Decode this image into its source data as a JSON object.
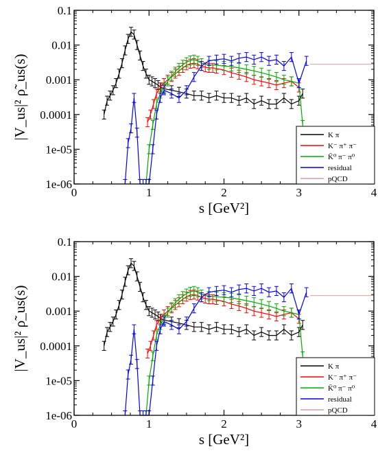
{
  "chart_data": [
    {
      "type": "line",
      "xlabel": "s [GeV²]",
      "ylabel": "|V_us|² ρ̃_us(s)",
      "xlim": [
        0,
        4
      ],
      "ylim": [
        1e-06,
        0.1
      ],
      "yscale": "log",
      "x_ticks": [
        "0",
        "1",
        "2",
        "3",
        "4"
      ],
      "y_ticks": [
        "1e-06",
        "1e-05",
        "0.0001",
        "0.001",
        "0.01",
        "0.1"
      ],
      "legend_position": "lower-right",
      "series": [
        {
          "name": "K π",
          "color": "#000000",
          "x": [
            0.4,
            0.44,
            0.48,
            0.52,
            0.56,
            0.6,
            0.64,
            0.68,
            0.72,
            0.76,
            0.8,
            0.84,
            0.88,
            0.92,
            0.96,
            1.0,
            1.04,
            1.08,
            1.12,
            1.16,
            1.2,
            1.3,
            1.4,
            1.5,
            1.6,
            1.7,
            1.8,
            1.9,
            2.0,
            2.1,
            2.2,
            2.3,
            2.4,
            2.5,
            2.6,
            2.7,
            2.8,
            2.9,
            3.0,
            3.05
          ],
          "y": [
            0.0001,
            0.00025,
            0.00035,
            0.0005,
            0.0008,
            0.0015,
            0.003,
            0.007,
            0.015,
            0.024,
            0.02,
            0.01,
            0.005,
            0.0025,
            0.0015,
            0.001,
            0.0009,
            0.0008,
            0.0007,
            0.0006,
            0.00055,
            0.0005,
            0.00045,
            0.0004,
            0.00035,
            0.00035,
            0.0003,
            0.00035,
            0.0003,
            0.0003,
            0.00025,
            0.0003,
            0.0002,
            0.00025,
            0.0002,
            0.0002,
            0.0003,
            0.0002,
            0.00025,
            0.0004
          ]
        },
        {
          "name": "K⁻ π⁺ π⁻",
          "color": "#ff0000",
          "x": [
            0.98,
            1.02,
            1.06,
            1.1,
            1.15,
            1.2,
            1.25,
            1.3,
            1.35,
            1.4,
            1.45,
            1.5,
            1.55,
            1.6,
            1.65,
            1.7,
            1.75,
            1.8,
            1.85,
            1.9,
            2.0,
            2.1,
            2.2,
            2.3,
            2.4,
            2.5,
            2.6,
            2.7,
            2.8,
            2.9,
            3.0
          ],
          "y": [
            6e-05,
            0.0001,
            0.0002,
            0.0004,
            0.0006,
            0.0008,
            0.001,
            0.0012,
            0.0015,
            0.0018,
            0.0022,
            0.0026,
            0.0029,
            0.003,
            0.0028,
            0.0025,
            0.0023,
            0.0022,
            0.0022,
            0.0021,
            0.0019,
            0.0016,
            0.0014,
            0.0012,
            0.001,
            0.0009,
            0.0008,
            0.0007,
            0.0008,
            0.0009,
            0.0006
          ]
        },
        {
          "name": "K̄⁰ π⁻ π⁰",
          "color": "#00aa00",
          "x": [
            0.96,
            1.0,
            1.05,
            1.1,
            1.15,
            1.2,
            1.25,
            1.3,
            1.35,
            1.4,
            1.45,
            1.5,
            1.55,
            1.6,
            1.65,
            1.7,
            1.8,
            1.9,
            2.0,
            2.1,
            2.2,
            2.3,
            2.4,
            2.5,
            2.6,
            2.7,
            2.8,
            2.9,
            3.0,
            3.05
          ],
          "y": [
            1e-06,
            1e-05,
            5e-05,
            0.0002,
            0.0004,
            0.0006,
            0.0009,
            0.0013,
            0.0017,
            0.0022,
            0.0027,
            0.0032,
            0.0036,
            0.0038,
            0.0035,
            0.003,
            0.0027,
            0.0026,
            0.0025,
            0.0024,
            0.0022,
            0.002,
            0.0018,
            0.0016,
            0.0014,
            0.0012,
            0.001,
            0.0009,
            0.0008,
            5e-05
          ]
        },
        {
          "name": "residual",
          "color": "#0000ee",
          "x": [
            0.68,
            0.72,
            0.76,
            0.8,
            0.84,
            0.88,
            0.92,
            0.96,
            1.0,
            1.05,
            1.1,
            1.15,
            1.2,
            1.3,
            1.4,
            1.5,
            1.6,
            1.7,
            1.8,
            1.9,
            2.0,
            2.1,
            2.2,
            2.3,
            2.4,
            2.5,
            2.6,
            2.7,
            2.8,
            2.9,
            3.0,
            3.1
          ],
          "y": [
            1e-06,
            1.5e-05,
            4e-05,
            0.0003,
            3e-05,
            1e-06,
            1e-06,
            1e-06,
            1e-06,
            1e-05,
            0.0001,
            0.0003,
            0.0005,
            0.0004,
            0.0003,
            0.0005,
            0.0012,
            0.0025,
            0.0035,
            0.0038,
            0.004,
            0.0035,
            0.0042,
            0.0045,
            0.0038,
            0.0045,
            0.0035,
            0.0038,
            0.0025,
            0.0045,
            0.0008,
            0.0035
          ]
        },
        {
          "name": "pQCD",
          "color": "#d4a0a0",
          "x": [
            3.15,
            4.0
          ],
          "y": [
            0.0028,
            0.0028
          ]
        }
      ]
    },
    {
      "type": "line",
      "xlabel": "s [GeV²]",
      "ylabel": "|V_us|² ρ̃_us(s)",
      "xlim": [
        0,
        4
      ],
      "ylim": [
        1e-06,
        0.1
      ],
      "yscale": "log",
      "x_ticks": [
        "0",
        "1",
        "2",
        "3",
        "4"
      ],
      "y_ticks": [
        "1e-06",
        "1e-05",
        "0.0001",
        "0.001",
        "0.01",
        "0.1"
      ],
      "legend_position": "lower-right",
      "series": [
        {
          "name": "K π",
          "color": "#000000",
          "x": [
            0.4,
            0.44,
            0.48,
            0.52,
            0.56,
            0.6,
            0.64,
            0.68,
            0.72,
            0.76,
            0.8,
            0.84,
            0.88,
            0.92,
            0.96,
            1.0,
            1.04,
            1.08,
            1.12,
            1.16,
            1.2,
            1.3,
            1.4,
            1.5,
            1.6,
            1.7,
            1.8,
            1.9,
            2.0,
            2.1,
            2.2,
            2.3,
            2.4,
            2.5,
            2.6,
            2.7,
            2.8,
            2.9,
            3.0,
            3.05
          ],
          "y": [
            0.0001,
            0.00025,
            0.00035,
            0.0005,
            0.0008,
            0.0015,
            0.003,
            0.007,
            0.015,
            0.024,
            0.02,
            0.01,
            0.005,
            0.0025,
            0.0015,
            0.001,
            0.0009,
            0.0008,
            0.0007,
            0.0006,
            0.00055,
            0.0005,
            0.00045,
            0.0004,
            0.00035,
            0.00035,
            0.0003,
            0.00035,
            0.0003,
            0.0003,
            0.00025,
            0.0003,
            0.0002,
            0.00025,
            0.0002,
            0.0002,
            0.0003,
            0.0002,
            0.00025,
            0.0004
          ]
        },
        {
          "name": "K⁻ π⁺ π⁻",
          "color": "#ff0000",
          "x": [
            0.98,
            1.02,
            1.06,
            1.1,
            1.15,
            1.2,
            1.25,
            1.3,
            1.35,
            1.4,
            1.45,
            1.5,
            1.55,
            1.6,
            1.65,
            1.7,
            1.75,
            1.8,
            1.85,
            1.9,
            2.0,
            2.1,
            2.2,
            2.3,
            2.4,
            2.5,
            2.6,
            2.7,
            2.8,
            2.9,
            3.0
          ],
          "y": [
            6e-05,
            0.0001,
            0.0002,
            0.0004,
            0.0006,
            0.0008,
            0.001,
            0.0012,
            0.0015,
            0.0018,
            0.0022,
            0.0026,
            0.0029,
            0.003,
            0.0028,
            0.0025,
            0.0023,
            0.0022,
            0.0022,
            0.0021,
            0.0019,
            0.0016,
            0.0014,
            0.0012,
            0.001,
            0.0009,
            0.0008,
            0.0007,
            0.0008,
            0.0009,
            0.0006
          ]
        },
        {
          "name": "K̄⁰ π⁻ π⁰",
          "color": "#00aa00",
          "x": [
            0.96,
            1.0,
            1.05,
            1.1,
            1.15,
            1.2,
            1.25,
            1.3,
            1.35,
            1.4,
            1.45,
            1.5,
            1.55,
            1.6,
            1.65,
            1.7,
            1.8,
            1.9,
            2.0,
            2.1,
            2.2,
            2.3,
            2.4,
            2.5,
            2.6,
            2.7,
            2.8,
            2.9,
            3.0,
            3.05
          ],
          "y": [
            1e-06,
            1e-05,
            5e-05,
            0.0002,
            0.0004,
            0.0006,
            0.0009,
            0.0013,
            0.0017,
            0.0022,
            0.0027,
            0.0032,
            0.0036,
            0.0038,
            0.0035,
            0.003,
            0.0027,
            0.0026,
            0.0025,
            0.0024,
            0.0022,
            0.002,
            0.0018,
            0.0016,
            0.0014,
            0.0012,
            0.001,
            0.0009,
            0.0008,
            5e-05
          ]
        },
        {
          "name": "residual",
          "color": "#0000ee",
          "x": [
            0.68,
            0.72,
            0.76,
            0.8,
            0.84,
            0.88,
            0.92,
            0.96,
            1.0,
            1.05,
            1.1,
            1.15,
            1.2,
            1.3,
            1.4,
            1.5,
            1.6,
            1.7,
            1.8,
            1.9,
            2.0,
            2.1,
            2.2,
            2.3,
            2.4,
            2.5,
            2.6,
            2.7,
            2.8,
            2.9,
            3.0,
            3.1
          ],
          "y": [
            1e-06,
            1.5e-05,
            4e-05,
            0.0003,
            3e-05,
            1e-06,
            1e-06,
            1e-06,
            1e-06,
            1e-05,
            0.0001,
            0.0003,
            0.0005,
            0.0004,
            0.0003,
            0.0005,
            0.0012,
            0.0025,
            0.0035,
            0.0038,
            0.004,
            0.0035,
            0.0042,
            0.0045,
            0.0038,
            0.0045,
            0.0035,
            0.0038,
            0.0025,
            0.0045,
            0.0008,
            0.0035
          ]
        },
        {
          "name": "pQCD",
          "color": "#d4a0a0",
          "x": [
            3.15,
            4.0
          ],
          "y": [
            0.0028,
            0.0028
          ]
        }
      ]
    }
  ]
}
